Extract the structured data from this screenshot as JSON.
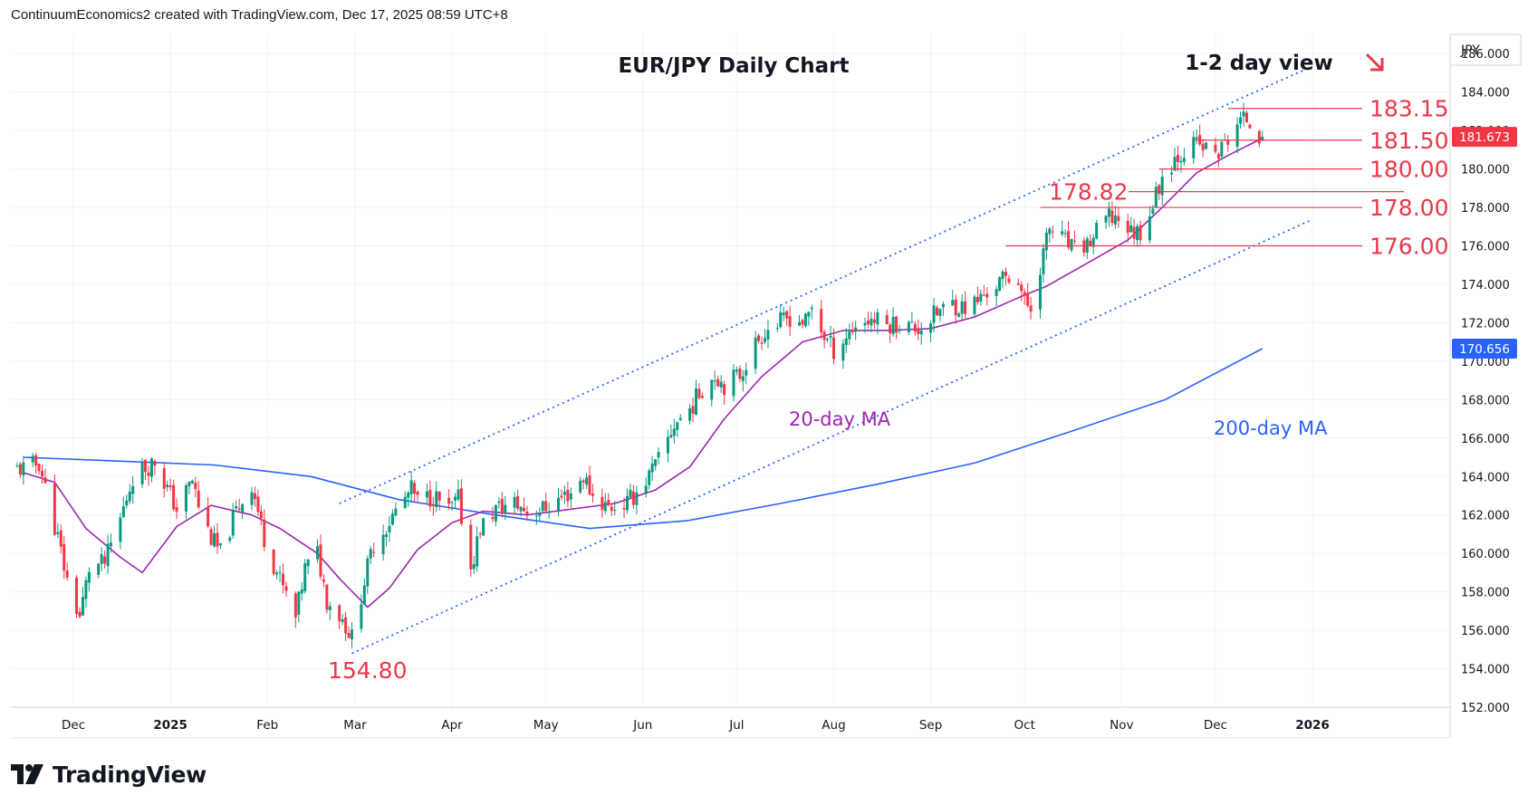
{
  "header": {
    "attribution": "ContinuumEconomics2 created with TradingView.com, Dec 17, 2025 08:59 UTC+8"
  },
  "footer": {
    "brand": "TradingView"
  },
  "colors": {
    "up": "#089981",
    "down": "#f23645",
    "level": "#e8394b",
    "ma20": "#9c27b0",
    "ma200": "#2962ff",
    "channel": "#2962ff",
    "arrow": "#e8394b"
  },
  "chart_data": {
    "type": "candlestick",
    "title": "EUR/JPY Daily Chart",
    "view_label": "1-2 day view",
    "view_direction": "down",
    "currency": "JPY",
    "ylim": [
      152,
      187
    ],
    "yticks": [
      "186.000",
      "184.000",
      "182.000",
      "180.000",
      "178.000",
      "176.000",
      "174.000",
      "172.000",
      "170.000",
      "168.000",
      "166.000",
      "164.000",
      "162.000",
      "160.000",
      "158.000",
      "156.000",
      "154.000",
      "152.000"
    ],
    "xticks": [
      "Dec",
      "2025",
      "Feb",
      "Mar",
      "Apr",
      "May",
      "Jun",
      "Jul",
      "Aug",
      "Sep",
      "Oct",
      "Nov",
      "Dec",
      "2026"
    ],
    "price_labels": [
      {
        "id": "last",
        "value": "181.673"
      },
      {
        "id": "ma200",
        "value": "170.656"
      }
    ],
    "levels": [
      {
        "label": "183.15",
        "value": 183.15,
        "from": "2025-12-05"
      },
      {
        "label": "181.50",
        "value": 181.5,
        "from": "2025-11-24"
      },
      {
        "label": "180.00",
        "value": 180.0,
        "from": "2025-11-13"
      },
      {
        "label": "178.82",
        "value": 178.82,
        "from": "2025-10-24"
      },
      {
        "label": "178.00",
        "value": 178.0,
        "from": "2025-10-06"
      },
      {
        "label": "176.00",
        "value": 176.0,
        "from": "2025-09-25"
      }
    ],
    "low_label": {
      "label": "154.80",
      "value": 154.8,
      "date": "2025-02-28"
    },
    "annotations": [
      {
        "id": "ma20",
        "text": "20-day MA"
      },
      {
        "id": "ma200",
        "text": "200-day MA"
      }
    ],
    "channel": {
      "upper": [
        [
          "2025-02-24",
          162.6
        ],
        [
          "2025-12-30",
          185.2
        ]
      ],
      "lower": [
        [
          "2025-02-28",
          154.8
        ],
        [
          "2025-12-31",
          177.3
        ]
      ]
    },
    "anchors": [
      [
        "2024-11-15",
        164.4
      ],
      [
        "2024-11-20",
        164.7
      ],
      [
        "2024-11-26",
        160.8
      ],
      [
        "2024-11-29",
        158.6
      ],
      [
        "2024-12-03",
        156.7
      ],
      [
        "2024-12-06",
        159.2
      ],
      [
        "2024-12-11",
        159.5
      ],
      [
        "2024-12-16",
        161.8
      ],
      [
        "2024-12-20",
        164.0
      ],
      [
        "2024-12-27",
        164.8
      ],
      [
        "2025-01-03",
        162.3
      ],
      [
        "2025-01-08",
        163.8
      ],
      [
        "2025-01-10",
        162.5
      ],
      [
        "2025-01-14",
        160.8
      ],
      [
        "2025-01-17",
        160.0
      ],
      [
        "2025-01-22",
        162.2
      ],
      [
        "2025-01-27",
        163.6
      ],
      [
        "2025-01-31",
        160.8
      ],
      [
        "2025-02-05",
        158.6
      ],
      [
        "2025-02-10",
        156.6
      ],
      [
        "2025-02-13",
        159.2
      ],
      [
        "2025-02-17",
        160.0
      ],
      [
        "2025-02-20",
        157.6
      ],
      [
        "2025-02-25",
        156.6
      ],
      [
        "2025-02-28",
        155.6
      ],
      [
        "2025-03-04",
        158.6
      ],
      [
        "2025-03-07",
        160.5
      ],
      [
        "2025-03-11",
        161.4
      ],
      [
        "2025-03-14",
        162.2
      ],
      [
        "2025-03-19",
        163.3
      ],
      [
        "2025-03-21",
        162.7
      ],
      [
        "2025-03-26",
        163.0
      ],
      [
        "2025-03-31",
        162.2
      ],
      [
        "2025-04-03",
        162.8
      ],
      [
        "2025-04-07",
        159.2
      ],
      [
        "2025-04-10",
        161.3
      ],
      [
        "2025-04-15",
        162.3
      ],
      [
        "2025-04-21",
        162.6
      ],
      [
        "2025-04-25",
        162.2
      ],
      [
        "2025-04-30",
        162.3
      ],
      [
        "2025-05-05",
        162.8
      ],
      [
        "2025-05-09",
        163.2
      ],
      [
        "2025-05-13",
        164.0
      ],
      [
        "2025-05-16",
        163.0
      ],
      [
        "2025-05-21",
        162.4
      ],
      [
        "2025-05-27",
        162.6
      ],
      [
        "2025-06-02",
        163.8
      ],
      [
        "2025-06-06",
        164.8
      ],
      [
        "2025-06-11",
        166.7
      ],
      [
        "2025-06-16",
        167.5
      ],
      [
        "2025-06-20",
        168.6
      ],
      [
        "2025-06-24",
        169.3
      ],
      [
        "2025-06-27",
        168.8
      ],
      [
        "2025-07-02",
        169.3
      ],
      [
        "2025-07-07",
        170.9
      ],
      [
        "2025-07-10",
        171.6
      ],
      [
        "2025-07-15",
        172.0
      ],
      [
        "2025-07-18",
        172.3
      ],
      [
        "2025-07-23",
        172.0
      ],
      [
        "2025-07-25",
        172.8
      ],
      [
        "2025-07-29",
        171.3
      ],
      [
        "2025-08-01",
        170.6
      ],
      [
        "2025-08-05",
        171.3
      ],
      [
        "2025-08-08",
        171.9
      ],
      [
        "2025-08-13",
        172.2
      ],
      [
        "2025-08-18",
        171.9
      ],
      [
        "2025-08-22",
        172.0
      ],
      [
        "2025-08-27",
        171.7
      ],
      [
        "2025-08-29",
        171.8
      ],
      [
        "2025-09-03",
        172.5
      ],
      [
        "2025-09-08",
        173.0
      ],
      [
        "2025-09-11",
        172.8
      ],
      [
        "2025-09-15",
        173.0
      ],
      [
        "2025-09-19",
        173.6
      ],
      [
        "2025-09-24",
        174.2
      ],
      [
        "2025-09-29",
        174.4
      ],
      [
        "2025-10-01",
        173.0
      ],
      [
        "2025-10-03",
        172.8
      ],
      [
        "2025-10-06",
        175.0
      ],
      [
        "2025-10-09",
        176.9
      ],
      [
        "2025-10-14",
        176.2
      ],
      [
        "2025-10-17",
        175.7
      ],
      [
        "2025-10-22",
        176.2
      ],
      [
        "2025-10-27",
        177.4
      ],
      [
        "2025-10-31",
        177.5
      ],
      [
        "2025-11-04",
        176.7
      ],
      [
        "2025-11-07",
        176.8
      ],
      [
        "2025-11-11",
        178.2
      ],
      [
        "2025-11-14",
        179.6
      ],
      [
        "2025-11-18",
        180.6
      ],
      [
        "2025-11-21",
        181.0
      ],
      [
        "2025-11-25",
        181.3
      ],
      [
        "2025-11-28",
        181.0
      ],
      [
        "2025-12-02",
        180.8
      ],
      [
        "2025-12-04",
        181.3
      ],
      [
        "2025-12-08",
        182.4
      ],
      [
        "2025-12-11",
        182.6
      ],
      [
        "2025-12-16",
        181.673
      ]
    ],
    "ma20": [
      [
        "2024-11-15",
        164.2
      ],
      [
        "2024-11-25",
        163.7
      ],
      [
        "2024-12-05",
        161.3
      ],
      [
        "2024-12-16",
        159.8
      ],
      [
        "2024-12-23",
        159.0
      ],
      [
        "2025-01-03",
        161.4
      ],
      [
        "2025-01-14",
        162.5
      ],
      [
        "2025-01-27",
        162.0
      ],
      [
        "2025-02-05",
        161.3
      ],
      [
        "2025-02-17",
        160.0
      ],
      [
        "2025-02-24",
        158.7
      ],
      [
        "2025-03-05",
        157.2
      ],
      [
        "2025-03-12",
        158.2
      ],
      [
        "2025-03-21",
        160.2
      ],
      [
        "2025-04-01",
        161.6
      ],
      [
        "2025-04-11",
        162.2
      ],
      [
        "2025-04-25",
        162.0
      ],
      [
        "2025-05-09",
        162.3
      ],
      [
        "2025-05-23",
        162.6
      ],
      [
        "2025-06-05",
        163.3
      ],
      [
        "2025-06-16",
        164.5
      ],
      [
        "2025-06-27",
        167.0
      ],
      [
        "2025-07-09",
        169.2
      ],
      [
        "2025-07-22",
        171.0
      ],
      [
        "2025-08-04",
        171.6
      ],
      [
        "2025-08-18",
        171.6
      ],
      [
        "2025-09-01",
        171.7
      ],
      [
        "2025-09-15",
        172.3
      ],
      [
        "2025-09-29",
        173.3
      ],
      [
        "2025-10-08",
        173.9
      ],
      [
        "2025-10-20",
        175.0
      ],
      [
        "2025-11-03",
        176.3
      ],
      [
        "2025-11-14",
        178.0
      ],
      [
        "2025-11-25",
        179.8
      ],
      [
        "2025-12-05",
        180.7
      ],
      [
        "2025-12-16",
        181.6
      ]
    ],
    "ma200": [
      [
        "2024-11-15",
        165.0
      ],
      [
        "2024-12-16",
        164.8
      ],
      [
        "2025-01-15",
        164.6
      ],
      [
        "2025-02-15",
        164.0
      ],
      [
        "2025-03-15",
        162.8
      ],
      [
        "2025-04-15",
        162.0
      ],
      [
        "2025-05-15",
        161.3
      ],
      [
        "2025-06-15",
        161.7
      ],
      [
        "2025-07-15",
        162.6
      ],
      [
        "2025-08-15",
        163.6
      ],
      [
        "2025-09-15",
        164.7
      ],
      [
        "2025-10-15",
        166.3
      ],
      [
        "2025-11-15",
        168.0
      ],
      [
        "2025-12-16",
        170.656
      ]
    ]
  }
}
